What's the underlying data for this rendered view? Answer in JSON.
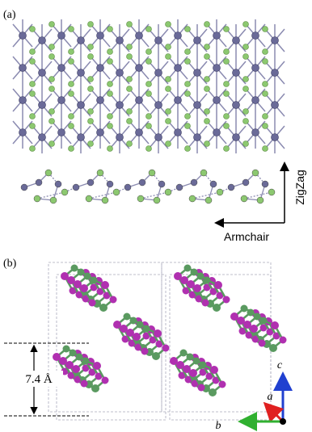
{
  "panel_a": {
    "label": "(a)",
    "zigzag": "ZigZag",
    "armchair": "Armchair"
  },
  "panel_b": {
    "label": "(b)",
    "spacing": "7.4 Å",
    "axis_c": "c",
    "axis_a": "a",
    "axis_b": "b"
  }
}
